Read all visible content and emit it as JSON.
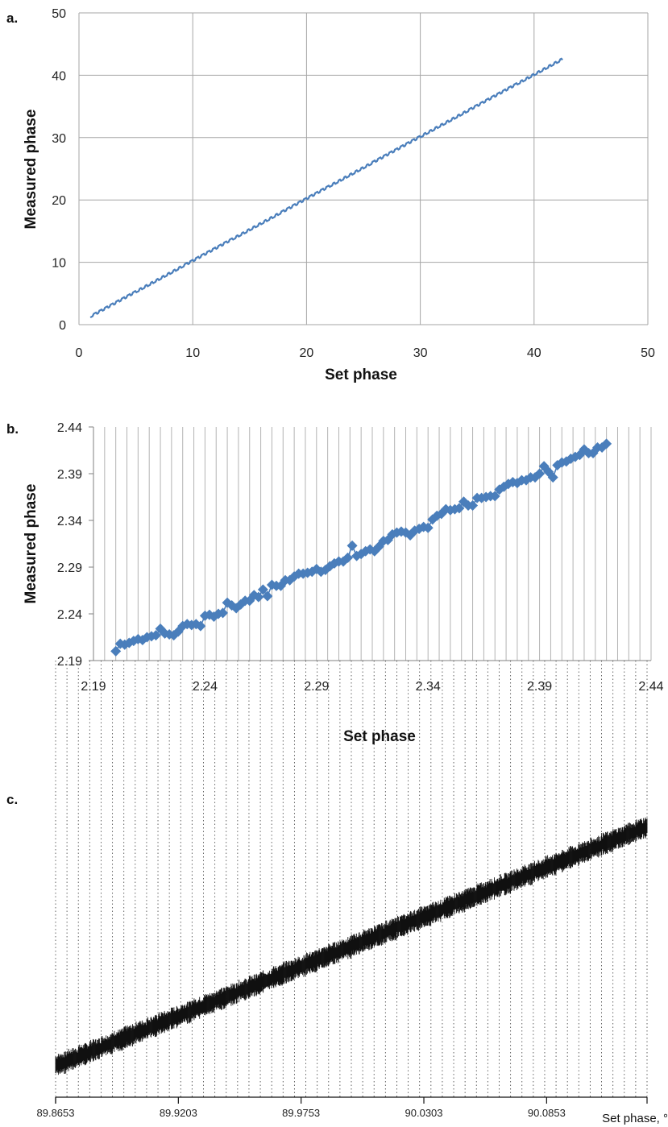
{
  "chart_data": [
    {
      "panel_label": "a.",
      "type": "line",
      "xlabel": "Set phase",
      "ylabel": "Measured phase",
      "xlim": [
        0,
        50
      ],
      "ylim": [
        0,
        50
      ],
      "x_ticks": [
        "0",
        "10",
        "20",
        "30",
        "40",
        "50"
      ],
      "y_ticks": [
        "0",
        "10",
        "20",
        "30",
        "40",
        "50"
      ],
      "grid": true,
      "line_color": "#4a7ebb",
      "series": [
        {
          "x_range": [
            1,
            42.5
          ],
          "y_range": [
            1.3,
            42.6
          ],
          "shape": "staircase rising roughly 1 per unit of set phase"
        }
      ]
    },
    {
      "panel_label": "b.",
      "type": "scatter",
      "xlabel": "Set phase",
      "ylabel": "Measured phase",
      "xlim": [
        2.19,
        2.44
      ],
      "ylim": [
        2.19,
        2.44
      ],
      "x_ticks": [
        "2.19",
        "2.24",
        "2.29",
        "2.34",
        "2.39",
        "2.44"
      ],
      "y_ticks": [
        "2.19",
        "2.24",
        "2.29",
        "2.34",
        "2.39",
        "2.44"
      ],
      "grid": true,
      "marker_color": "#4a7ebb",
      "series": [
        {
          "x": [
            2.2,
            2.202,
            2.204,
            2.206,
            2.208,
            2.21,
            2.212,
            2.214,
            2.216,
            2.218,
            2.22,
            2.222,
            2.224,
            2.226,
            2.228,
            2.23,
            2.232,
            2.234,
            2.236,
            2.238,
            2.24,
            2.242,
            2.244,
            2.246,
            2.248,
            2.25,
            2.252,
            2.254,
            2.256,
            2.258,
            2.26,
            2.262,
            2.264,
            2.266,
            2.268,
            2.27,
            2.272,
            2.274,
            2.276,
            2.278,
            2.28,
            2.282,
            2.284,
            2.286,
            2.288,
            2.29,
            2.292,
            2.294,
            2.296,
            2.298,
            2.3,
            2.302,
            2.304,
            2.306,
            2.308,
            2.31,
            2.312,
            2.314,
            2.316,
            2.318,
            2.32,
            2.322,
            2.324,
            2.326,
            2.328,
            2.33,
            2.332,
            2.334,
            2.336,
            2.338,
            2.34,
            2.342,
            2.344,
            2.346,
            2.348,
            2.35,
            2.352,
            2.354,
            2.356,
            2.358,
            2.36,
            2.362,
            2.364,
            2.366,
            2.368,
            2.37,
            2.372,
            2.374,
            2.376,
            2.378,
            2.38,
            2.382,
            2.384,
            2.386,
            2.388,
            2.39,
            2.392,
            2.394,
            2.396,
            2.398,
            2.4,
            2.402,
            2.404,
            2.406,
            2.408,
            2.41,
            2.412,
            2.414,
            2.416,
            2.418,
            2.42
          ],
          "y": [
            2.2,
            2.208,
            2.207,
            2.209,
            2.211,
            2.213,
            2.212,
            2.215,
            2.216,
            2.217,
            2.224,
            2.219,
            2.218,
            2.217,
            2.221,
            2.227,
            2.229,
            2.228,
            2.229,
            2.227,
            2.238,
            2.239,
            2.237,
            2.24,
            2.241,
            2.252,
            2.249,
            2.246,
            2.25,
            2.254,
            2.254,
            2.26,
            2.258,
            2.266,
            2.259,
            2.271,
            2.27,
            2.27,
            2.276,
            2.276,
            2.28,
            2.283,
            2.283,
            2.284,
            2.285,
            2.288,
            2.285,
            2.287,
            2.291,
            2.294,
            2.296,
            2.296,
            2.3,
            2.313,
            2.302,
            2.304,
            2.307,
            2.309,
            2.307,
            2.312,
            2.318,
            2.319,
            2.325,
            2.327,
            2.328,
            2.327,
            2.324,
            2.329,
            2.331,
            2.333,
            2.332,
            2.341,
            2.345,
            2.347,
            2.352,
            2.351,
            2.352,
            2.353,
            2.36,
            2.356,
            2.356,
            2.364,
            2.364,
            2.365,
            2.366,
            2.366,
            2.373,
            2.376,
            2.379,
            2.381,
            2.38,
            2.383,
            2.383,
            2.386,
            2.386,
            2.39,
            2.398,
            2.392,
            2.386,
            2.399,
            2.402,
            2.403,
            2.406,
            2.408,
            2.41,
            2.416,
            2.412,
            2.412,
            2.418,
            2.418,
            2.422
          ]
        }
      ]
    },
    {
      "panel_label": "c.",
      "type": "scatter",
      "xlabel": "Set phase, °",
      "xlim": [
        89.8653,
        90.1303
      ],
      "x_ticks": [
        "89.8653",
        "89.9203",
        "89.9753",
        "90.0303",
        "90.0853"
      ],
      "grid": "dotted vertical",
      "marker_color": "#111111",
      "series": [
        {
          "x_range": [
            89.8653,
            90.1303
          ],
          "shape": "dense noisy staircase rising from lower left to upper right"
        }
      ]
    }
  ]
}
